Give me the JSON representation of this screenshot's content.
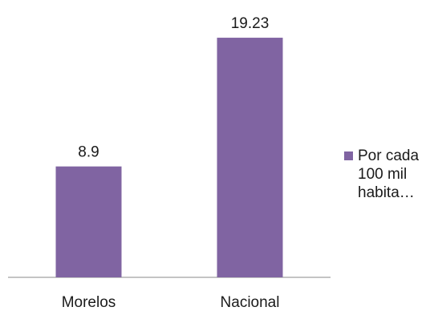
{
  "chart_data": {
    "type": "bar",
    "categories": [
      "Morelos",
      "Nacional"
    ],
    "series": [
      {
        "name": "Por cada 100 mil habita…",
        "values": [
          8.9,
          19.23
        ]
      }
    ],
    "data_labels": [
      "8.9",
      "19.23"
    ],
    "title": "",
    "xlabel": "",
    "ylabel": "",
    "ylim": [
      0,
      22
    ],
    "grid": false,
    "legend": {
      "position": "right",
      "label": "Por cada 100 mil habita…"
    },
    "colors": {
      "bar": "#8064A2",
      "axis": "#888888",
      "text": "#1a1a1a"
    }
  }
}
